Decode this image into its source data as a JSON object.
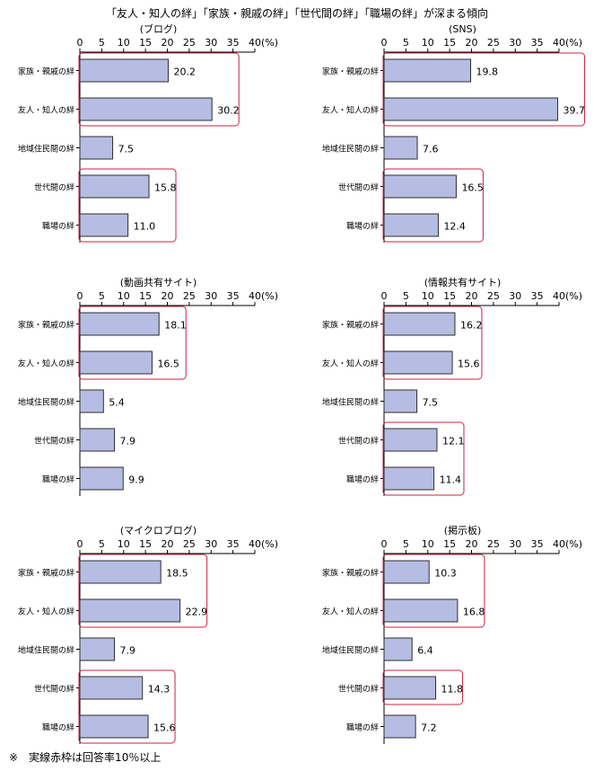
{
  "title": "「友人・知人の絆」「家族・親戚の絆」「世代間の絆」「職場の絆」が深まる傾向",
  "note": "※　実線赤枠は回答率10％以上",
  "colors": {
    "bar_fill": "#b6bde3",
    "bar_stroke": "#2e2e2e",
    "highlight_box": "#cc2244",
    "axis": "#000000"
  },
  "chart_data": [
    {
      "type": "bar",
      "orientation": "horizontal",
      "title": "(ブログ)",
      "unit": "(%)",
      "categories": [
        "家族・親戚の絆",
        "友人・知人の絆",
        "地域住民間の絆",
        "世代間の絆",
        "職場の絆"
      ],
      "values": [
        20.2,
        30.2,
        7.5,
        15.8,
        11.0
      ],
      "value_labels": [
        "20.2",
        "30.2",
        "7.5",
        "15.8",
        "11.0"
      ],
      "xlim": [
        0,
        40
      ],
      "ticks": [
        "0",
        "5",
        "10",
        "15",
        "20",
        "25",
        "30",
        "35",
        "40"
      ],
      "highlight_groups": [
        [
          0,
          1
        ],
        [
          3,
          4
        ]
      ]
    },
    {
      "type": "bar",
      "orientation": "horizontal",
      "title": "(SNS)",
      "unit": "(%)",
      "categories": [
        "家族・親戚の絆",
        "友人・知人の絆",
        "地域住民間の絆",
        "世代間の絆",
        "職場の絆"
      ],
      "values": [
        19.8,
        39.7,
        7.6,
        16.5,
        12.4
      ],
      "value_labels": [
        "19.8",
        "39.7",
        "7.6",
        "16.5",
        "12.4"
      ],
      "xlim": [
        0,
        40
      ],
      "ticks": [
        "0",
        "5",
        "10",
        "15",
        "20",
        "25",
        "30",
        "35",
        "40"
      ],
      "highlight_groups": [
        [
          0,
          1
        ],
        [
          3,
          4
        ]
      ]
    },
    {
      "type": "bar",
      "orientation": "horizontal",
      "title": "(動画共有サイト)",
      "unit": "(%)",
      "categories": [
        "家族・親戚の絆",
        "友人・知人の絆",
        "地域住民間の絆",
        "世代間の絆",
        "職場の絆"
      ],
      "values": [
        18.1,
        16.5,
        5.4,
        7.9,
        9.9
      ],
      "value_labels": [
        "18.1",
        "16.5",
        "5.4",
        "7.9",
        "9.9"
      ],
      "xlim": [
        0,
        40
      ],
      "ticks": [
        "0",
        "5",
        "10",
        "15",
        "20",
        "25",
        "30",
        "35",
        "40"
      ],
      "highlight_groups": [
        [
          0,
          1
        ]
      ]
    },
    {
      "type": "bar",
      "orientation": "horizontal",
      "title": "(情報共有サイト)",
      "unit": "(%)",
      "categories": [
        "家族・親戚の絆",
        "友人・知人の絆",
        "地域住民間の絆",
        "世代間の絆",
        "職場の絆"
      ],
      "values": [
        16.2,
        15.6,
        7.5,
        12.1,
        11.4
      ],
      "value_labels": [
        "16.2",
        "15.6",
        "7.5",
        "12.1",
        "11.4"
      ],
      "xlim": [
        0,
        40
      ],
      "ticks": [
        "0",
        "5",
        "10",
        "15",
        "20",
        "25",
        "30",
        "35",
        "40"
      ],
      "highlight_groups": [
        [
          0,
          1
        ],
        [
          3,
          4
        ]
      ]
    },
    {
      "type": "bar",
      "orientation": "horizontal",
      "title": "(マイクロブログ)",
      "unit": "(%)",
      "categories": [
        "家族・親戚の絆",
        "友人・知人の絆",
        "地域住民間の絆",
        "世代間の絆",
        "職場の絆"
      ],
      "values": [
        18.5,
        22.9,
        7.9,
        14.3,
        15.6
      ],
      "value_labels": [
        "18.5",
        "22.9",
        "7.9",
        "14.3",
        "15.6"
      ],
      "xlim": [
        0,
        40
      ],
      "ticks": [
        "0",
        "5",
        "10",
        "15",
        "20",
        "25",
        "30",
        "35",
        "40"
      ],
      "highlight_groups": [
        [
          0,
          1
        ],
        [
          3,
          4
        ]
      ]
    },
    {
      "type": "bar",
      "orientation": "horizontal",
      "title": "(掲示板)",
      "unit": "(%)",
      "categories": [
        "家族・親戚の絆",
        "友人・知人の絆",
        "地域住民間の絆",
        "世代間の絆",
        "職場の絆"
      ],
      "values": [
        10.3,
        16.8,
        6.4,
        11.8,
        7.2
      ],
      "value_labels": [
        "10.3",
        "16.8",
        "6.4",
        "11.8",
        "7.2"
      ],
      "xlim": [
        0,
        40
      ],
      "ticks": [
        "0",
        "5",
        "10",
        "15",
        "20",
        "25",
        "30",
        "35",
        "40"
      ],
      "highlight_groups": [
        [
          0,
          1
        ],
        [
          3
        ]
      ]
    }
  ]
}
